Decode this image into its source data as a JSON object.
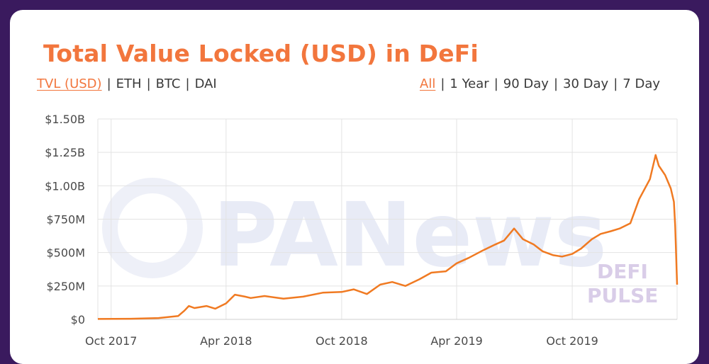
{
  "title": "Total Value Locked (USD) in DeFi",
  "currency_tabs": [
    {
      "label": "TVL (USD)",
      "active": true
    },
    {
      "label": "ETH",
      "active": false
    },
    {
      "label": "BTC",
      "active": false
    },
    {
      "label": "DAI",
      "active": false
    }
  ],
  "range_tabs": [
    {
      "label": "All",
      "active": true
    },
    {
      "label": "1 Year",
      "active": false
    },
    {
      "label": "90 Day",
      "active": false
    },
    {
      "label": "30 Day",
      "active": false
    },
    {
      "label": "7 Day",
      "active": false
    }
  ],
  "watermark": {
    "main": "PANews",
    "line1": "DEFI",
    "line2": "PULSE"
  },
  "colors": {
    "accent": "#f2763d",
    "line": "#f07a22",
    "background": "#3a1a5e"
  },
  "chart_data": {
    "type": "line",
    "title": "Total Value Locked (USD) in DeFi",
    "xlabel": "",
    "ylabel": "",
    "grid": true,
    "y_ticks": [
      "$0",
      "$250M",
      "$500M",
      "$750M",
      "$1.00B",
      "$1.25B",
      "$1.50B"
    ],
    "y_tick_values": [
      0,
      250,
      500,
      750,
      1000,
      1250,
      1500
    ],
    "ylim": [
      0,
      1500
    ],
    "x_ticks": [
      "Oct 2017",
      "Apr 2018",
      "Oct 2018",
      "Apr 2019",
      "Oct 2019"
    ],
    "x_tick_values": [
      "2017-10-01",
      "2018-04-01",
      "2018-10-01",
      "2019-04-01",
      "2019-10-01"
    ],
    "xlim": [
      "2017-09-10",
      "2020-03-15"
    ],
    "series": [
      {
        "name": "",
        "x": [
          "2017-09-10",
          "2017-11-01",
          "2017-12-15",
          "2018-01-15",
          "2018-01-25",
          "2018-02-01",
          "2018-02-10",
          "2018-03-01",
          "2018-03-15",
          "2018-04-01",
          "2018-04-15",
          "2018-05-01",
          "2018-05-10",
          "2018-06-01",
          "2018-07-01",
          "2018-08-01",
          "2018-09-01",
          "2018-10-01",
          "2018-10-20",
          "2018-11-10",
          "2018-12-01",
          "2018-12-20",
          "2019-01-10",
          "2019-02-01",
          "2019-02-20",
          "2019-03-15",
          "2019-04-01",
          "2019-04-20",
          "2019-05-10",
          "2019-06-01",
          "2019-06-15",
          "2019-07-01",
          "2019-07-15",
          "2019-08-01",
          "2019-08-15",
          "2019-09-01",
          "2019-09-15",
          "2019-10-01",
          "2019-10-15",
          "2019-11-01",
          "2019-11-15",
          "2019-12-01",
          "2019-12-15",
          "2020-01-01",
          "2020-01-15",
          "2020-02-01",
          "2020-02-10",
          "2020-02-15",
          "2020-02-25",
          "2020-03-05",
          "2020-03-10",
          "2020-03-12",
          "2020-03-15"
        ],
        "values": [
          3,
          5,
          10,
          25,
          65,
          100,
          85,
          100,
          80,
          120,
          185,
          170,
          160,
          175,
          155,
          170,
          200,
          205,
          225,
          190,
          260,
          280,
          250,
          300,
          350,
          360,
          420,
          460,
          510,
          560,
          590,
          680,
          600,
          560,
          510,
          480,
          470,
          490,
          530,
          600,
          640,
          660,
          680,
          720,
          900,
          1050,
          1230,
          1150,
          1080,
          980,
          880,
          700,
          260
        ]
      }
    ]
  }
}
